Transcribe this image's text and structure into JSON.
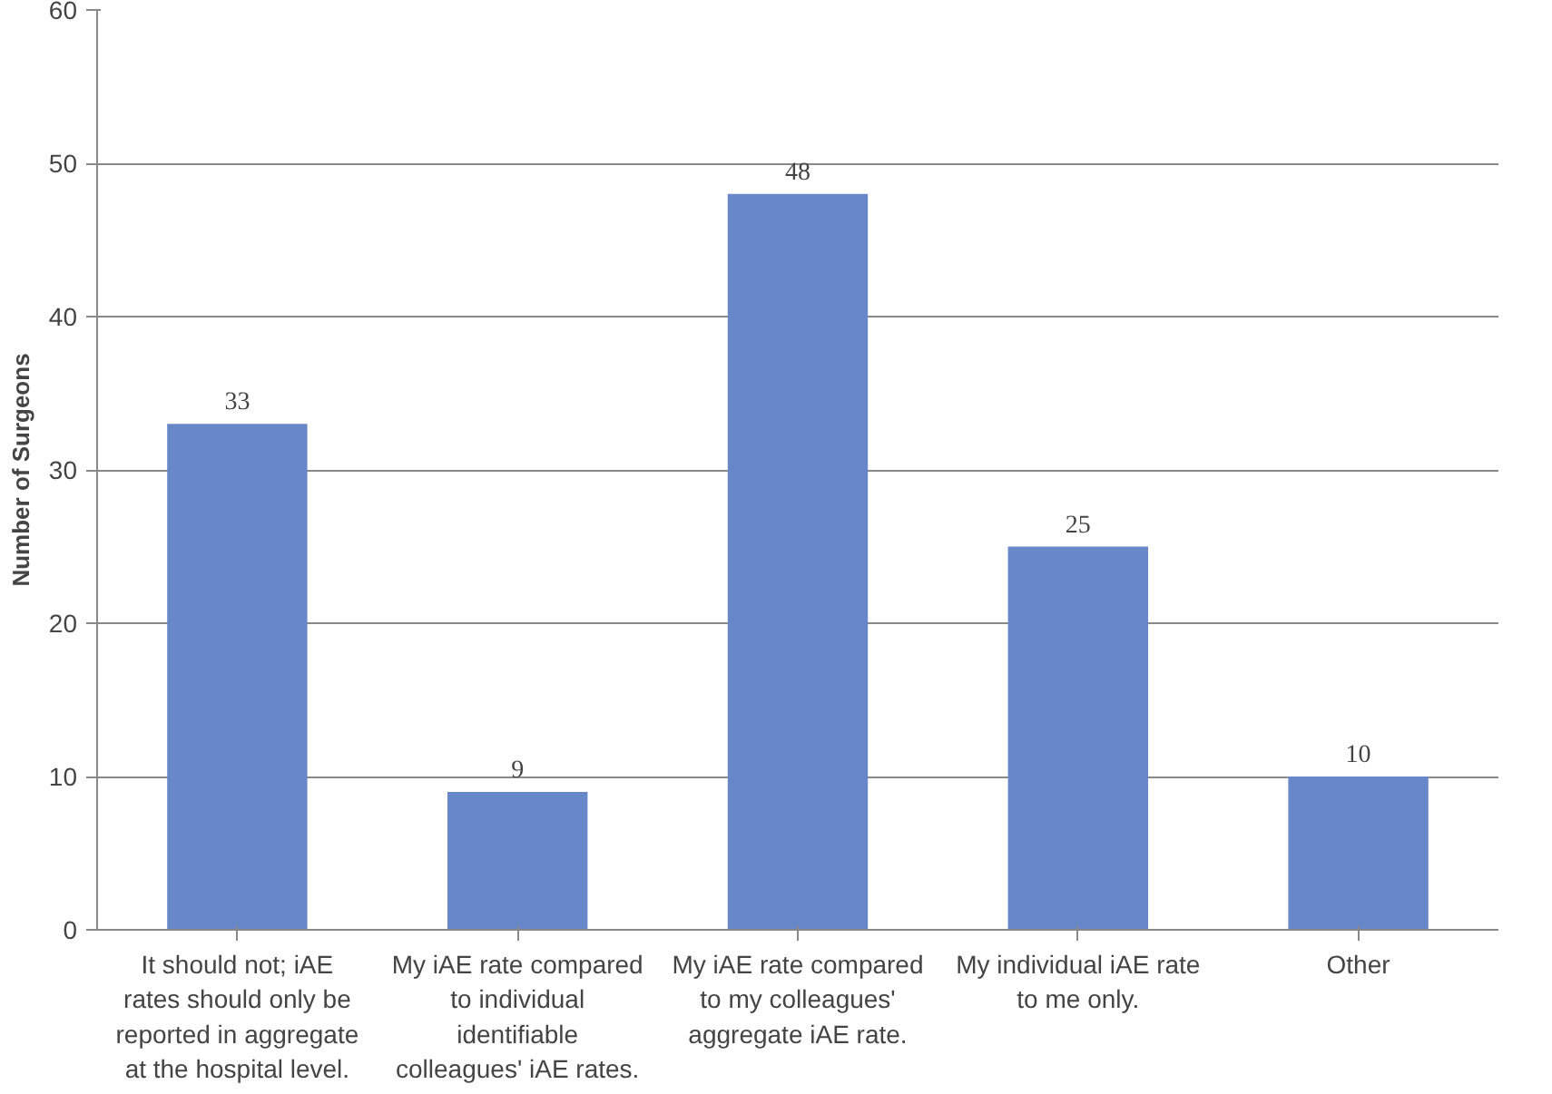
{
  "chart_data": {
    "type": "bar",
    "ylabel": "Number of Surgeons",
    "categories": [
      "It should not; iAE rates should only be reported in aggregate at the hospital level.",
      "My iAE rate compared to individual identifiable colleagues' iAE rates.",
      "My iAE rate compared to my colleagues' aggregate iAE rate.",
      "My individual iAE rate to me only.",
      "Other"
    ],
    "values": [
      33,
      9,
      48,
      25,
      10
    ],
    "color": "#6787c9",
    "ylim": [
      0,
      60
    ],
    "yticks": [
      0,
      10,
      20,
      30,
      40,
      50,
      60
    ],
    "grid": "y",
    "data_labels": true
  }
}
